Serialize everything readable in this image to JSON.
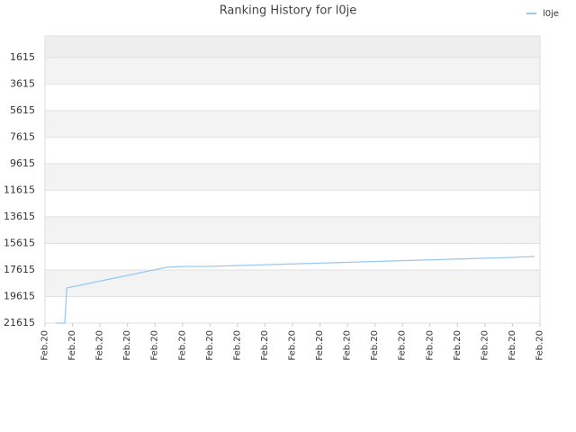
{
  "chart_data": {
    "type": "line",
    "title": "Ranking History for l0je",
    "x": [
      0.39,
      0.72,
      0.79,
      4.42,
      5.1,
      6.0,
      7.1,
      8.2,
      9.3,
      10.4,
      11.5,
      12.6,
      13.7,
      14.8,
      15.9,
      17.0,
      17.8
    ],
    "series": [
      {
        "name": "l0je",
        "color": "#99c9f2",
        "values": [
          21615,
          21615,
          18973,
          17414,
          17346,
          17346,
          17278,
          17211,
          17143,
          17075,
          17007,
          16939,
          16872,
          16804,
          16736,
          16668,
          16601
        ]
      }
    ],
    "xlim": [
      0,
      18
    ],
    "xticks": [
      {
        "value": 0,
        "label": "Feb.20"
      },
      {
        "value": 1,
        "label": "Feb.20"
      },
      {
        "value": 2,
        "label": "Feb.20"
      },
      {
        "value": 3,
        "label": "Feb.20"
      },
      {
        "value": 4,
        "label": "Feb.20"
      },
      {
        "value": 5,
        "label": "Feb.20"
      },
      {
        "value": 6,
        "label": "Feb.20"
      },
      {
        "value": 7,
        "label": "Feb.20"
      },
      {
        "value": 8,
        "label": "Feb.20"
      },
      {
        "value": 9,
        "label": "Feb.20"
      },
      {
        "value": 10,
        "label": "Feb.20"
      },
      {
        "value": 11,
        "label": "Feb.20"
      },
      {
        "value": 12,
        "label": "Feb.20"
      },
      {
        "value": 13,
        "label": "Feb.20"
      },
      {
        "value": 14,
        "label": "Feb.20"
      },
      {
        "value": 15,
        "label": "Feb.20"
      },
      {
        "value": 16,
        "label": "Feb.20"
      },
      {
        "value": 17,
        "label": "Feb.20"
      },
      {
        "value": 18,
        "label": "Feb.20"
      }
    ],
    "ylim": [
      21615,
      0
    ],
    "yticks": [
      1615,
      3615,
      5615,
      7615,
      9615,
      11615,
      13615,
      15615,
      17615,
      19615,
      21615
    ],
    "grid": true,
    "legend": "top-right"
  }
}
